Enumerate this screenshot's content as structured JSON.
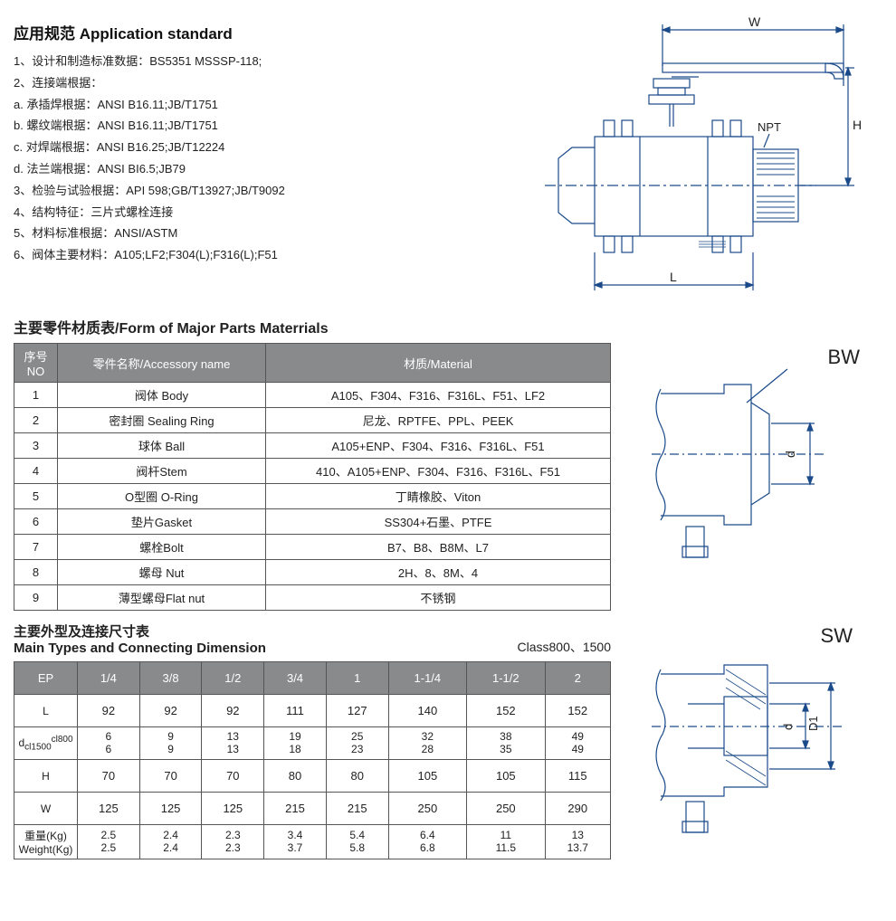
{
  "header": {
    "title": "应用规范 Application standard"
  },
  "spec_lines": [
    "1、设计和制造标准数据：BS5351 MSSSP-118;",
    "2、连接端根据：",
    "a. 承插焊根据：ANSI B16.11;JB/T1751",
    "b. 螺纹端根据：ANSI B16.11;JB/T1751",
    "c. 对焊端根据：ANSI B16.25;JB/T12224",
    "d. 法兰端根据：ANSI BI6.5;JB79",
    "3、检验与试验根据：API 598;GB/T13927;JB/T9092",
    "4、结构特征：三片式螺栓连接",
    "5、材料标准根据：ANSI/ASTM",
    "6、阀体主要材料：A105;LF2;F304(L);F316(L);F51"
  ],
  "main_diagram": {
    "labels": {
      "W": "W",
      "H": "H",
      "L": "L",
      "NPT": "NPT"
    },
    "stroke": "#1a4a8a"
  },
  "materials_section": {
    "title": "主要零件材质表/Form of Major Parts Materrials",
    "headers": {
      "no": "序号\nNO",
      "name": "零件名称/Accessory name",
      "material": "材质/Material"
    },
    "rows": [
      {
        "no": "1",
        "name": "阀体 Body",
        "material": "A105、F304、F316、F316L、F51、LF2"
      },
      {
        "no": "2",
        "name": "密封圈 Sealing Ring",
        "material": "尼龙、RPTFE、PPL、PEEK"
      },
      {
        "no": "3",
        "name": "球体 Ball",
        "material": "A105+ENP、F304、F316、F316L、F51"
      },
      {
        "no": "4",
        "name": "阀杆Stem",
        "material": "410、A105+ENP、F304、F316、F316L、F51"
      },
      {
        "no": "5",
        "name": "O型圈 O-Ring",
        "material": "丁睛橡胶、Viton"
      },
      {
        "no": "6",
        "name": "垫片Gasket",
        "material": "SS304+石墨、PTFE"
      },
      {
        "no": "7",
        "name": "螺栓Bolt",
        "material": "B7、B8、B8M、L7"
      },
      {
        "no": "8",
        "name": "螺母 Nut",
        "material": "2H、8、8M、4"
      },
      {
        "no": "9",
        "name": "薄型螺母Flat nut",
        "material": "不锈钢"
      }
    ]
  },
  "dims_section": {
    "title_cn": "主要外型及连接尺寸表",
    "title_en": "Main Types and Connecting Dimension",
    "class_label": "Class800、1500",
    "col_labels": [
      "EP",
      "1/4",
      "3/8",
      "1/2",
      "3/4",
      "1",
      "1-1/4",
      "1-1/2",
      "2"
    ],
    "rows": [
      {
        "label": "L",
        "cells": [
          "92",
          "92",
          "92",
          "111",
          "127",
          "140",
          "152",
          "152"
        ]
      },
      {
        "label_html": "d<sub>cl1500</sub><sup>cl800</sup>",
        "two": true,
        "tops": [
          "6",
          "9",
          "13",
          "19",
          "25",
          "32",
          "38",
          "49"
        ],
        "bottoms": [
          "6",
          "9",
          "13",
          "18",
          "23",
          "28",
          "35",
          "49"
        ]
      },
      {
        "label": "H",
        "cells": [
          "70",
          "70",
          "70",
          "80",
          "80",
          "105",
          "105",
          "115"
        ]
      },
      {
        "label": "W",
        "cells": [
          "125",
          "125",
          "125",
          "215",
          "215",
          "250",
          "250",
          "290"
        ]
      },
      {
        "label_html": "重量(Kg)<br>Weight(Kg)",
        "two": true,
        "tops": [
          "2.5",
          "2.4",
          "2.3",
          "3.4",
          "5.4",
          "6.4",
          "11",
          "13"
        ],
        "bottoms": [
          "2.5",
          "2.4",
          "2.3",
          "3.7",
          "5.8",
          "6.8",
          "11.5",
          "13.7"
        ]
      }
    ]
  },
  "side_diagrams": {
    "bw_label": "BW",
    "sw_label": "SW",
    "d_label": "d",
    "d1_label": "D1",
    "stroke": "#1a4a8a"
  }
}
